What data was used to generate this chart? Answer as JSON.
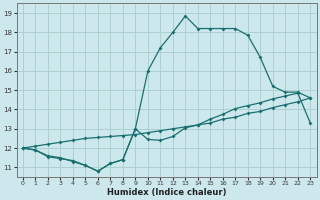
{
  "xlabel": "Humidex (Indice chaleur)",
  "bg_color": "#cde8ec",
  "grid_color": "#aacccc",
  "line_color": "#1a7070",
  "xlim": [
    -0.5,
    23.5
  ],
  "ylim": [
    10.5,
    19.5
  ],
  "xticks": [
    0,
    1,
    2,
    3,
    4,
    5,
    6,
    7,
    8,
    9,
    10,
    11,
    12,
    13,
    14,
    15,
    16,
    17,
    18,
    19,
    20,
    21,
    22,
    23
  ],
  "yticks": [
    11,
    12,
    13,
    14,
    15,
    16,
    17,
    18,
    19
  ],
  "line_upper_x": [
    0,
    1,
    2,
    3,
    4,
    5,
    6,
    7,
    8,
    9,
    10,
    11,
    12,
    13,
    14,
    15,
    16,
    17,
    18,
    19,
    20,
    21,
    22,
    23
  ],
  "line_upper_y": [
    12.0,
    11.9,
    11.6,
    11.5,
    11.3,
    11.1,
    10.8,
    11.2,
    11.4,
    13.0,
    16.0,
    17.2,
    18.0,
    18.85,
    18.2,
    18.2,
    18.2,
    18.2,
    17.85,
    16.7,
    15.2,
    14.9,
    14.9,
    14.6
  ],
  "line_diag_x": [
    0,
    1,
    2,
    3,
    4,
    5,
    6,
    7,
    8,
    9,
    10,
    11,
    12,
    13,
    14,
    15,
    16,
    17,
    18,
    19,
    20,
    21,
    22,
    23
  ],
  "line_diag_y": [
    12.0,
    12.1,
    12.2,
    12.3,
    12.4,
    12.5,
    12.55,
    12.6,
    12.65,
    12.7,
    12.8,
    12.9,
    13.0,
    13.1,
    13.2,
    13.3,
    13.5,
    13.6,
    13.8,
    13.9,
    14.1,
    14.25,
    14.4,
    14.6
  ],
  "line_lower_x": [
    0,
    1,
    2,
    3,
    4,
    5,
    6,
    7,
    8,
    9,
    10,
    11,
    12,
    13,
    14,
    15,
    16,
    17,
    18,
    19,
    20,
    21,
    22,
    23
  ],
  "line_lower_y": [
    12.0,
    11.9,
    11.55,
    11.45,
    11.35,
    11.1,
    10.8,
    11.2,
    11.4,
    13.0,
    12.45,
    12.4,
    12.6,
    13.05,
    13.2,
    13.5,
    13.75,
    14.05,
    14.2,
    14.35,
    14.55,
    14.7,
    14.85,
    13.3
  ]
}
